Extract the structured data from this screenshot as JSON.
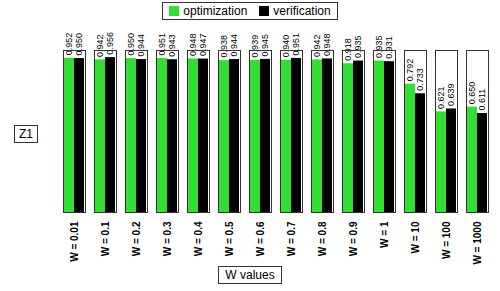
{
  "chart_data": {
    "type": "bar",
    "x_label": "W values",
    "y_label": "Z1",
    "categories": [
      "W = 0.01",
      "W = 0.1",
      "W = 0.2",
      "W = 0.3",
      "W = 0.4",
      "W = 0.5",
      "W = 0.6",
      "W = 0.7",
      "W = 0.8",
      "W = 0.9",
      "W = 1",
      "W = 10",
      "W = 100",
      "W = 1000"
    ],
    "series": [
      {
        "name": "optimization",
        "color": "#33dd33",
        "values": [
          0.952,
          0.942,
          0.95,
          0.951,
          0.948,
          0.938,
          0.939,
          0.94,
          0.942,
          0.918,
          0.935,
          0.792,
          0.621,
          0.65
        ],
        "value_labels": [
          "0.952",
          "0.942",
          "0.950",
          "0.951",
          "0.948",
          "0.938",
          "0.939",
          "0.940",
          "0.942",
          "0.918",
          "0.935",
          "0.792",
          "0.621",
          "0.650"
        ]
      },
      {
        "name": "verification",
        "color": "#000000",
        "values": [
          0.95,
          0.956,
          0.944,
          0.943,
          0.947,
          0.944,
          0.945,
          0.951,
          0.948,
          0.935,
          0.931,
          0.733,
          0.639,
          0.611
        ],
        "value_labels": [
          "0.950",
          "0.956",
          "0.944",
          "0.943",
          "0.947",
          "0.944",
          "0.945",
          "0.951",
          "0.948",
          "0.935",
          "0.931",
          "0.733",
          "0.639",
          "0.611"
        ]
      }
    ],
    "ylim": [
      0,
      1
    ],
    "grid": false,
    "legend": "top",
    "data_labels": true,
    "tick_labels": "x"
  }
}
